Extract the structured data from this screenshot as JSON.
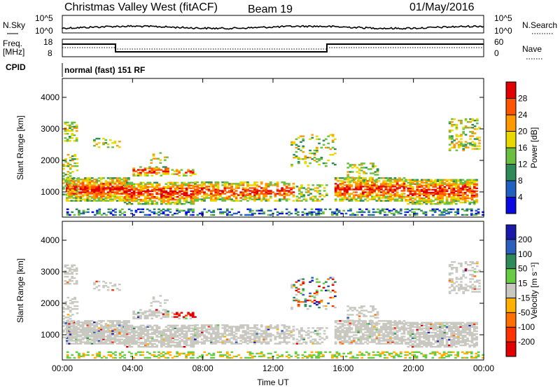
{
  "header": {
    "title": "Christmas Valley West (fitACF)",
    "beam": "Beam 19",
    "date": "01/May/2016"
  },
  "panels": {
    "nsky_label": "N.Sky",
    "nsky_ticks": [
      "10^5",
      "10^0"
    ],
    "nsearch_label": "N.Search",
    "nsearch_ticks": [
      "10^5",
      "10^0"
    ],
    "freq_label": "Freq.",
    "freq_unit": "[MHz]",
    "freq_ticks": [
      "18",
      "8"
    ],
    "nave_label": "Nave",
    "nave_ticks": [
      "60",
      "0"
    ],
    "cpid_label": "CPID",
    "cpid_text": "normal (fast) 151 RF"
  },
  "chart_data": [
    {
      "type": "heatmap",
      "name": "power-panel",
      "ylabel": "Slant Range [km]",
      "xlabel": "",
      "xlim": [
        "00:00",
        "24:00"
      ],
      "ylim": [
        200,
        4600
      ],
      "yticks": [
        "1000",
        "2000",
        "3000",
        "4000"
      ],
      "colorbar": {
        "label": "Power [dB]",
        "ticks": [
          "4",
          "8",
          "12",
          "16",
          "20",
          "24",
          "28"
        ],
        "colors": [
          "#0a0ae0",
          "#2060c0",
          "#2e8b57",
          "#6abf40",
          "#e8d800",
          "#ff9900",
          "#ff5500",
          "#e00000"
        ]
      }
    },
    {
      "type": "heatmap",
      "name": "velocity-panel",
      "ylabel": "Slant Range [km]",
      "xlabel": "Time UT",
      "xlim": [
        "00:00",
        "24:00"
      ],
      "ylim": [
        200,
        4600
      ],
      "xticks": [
        "00:00",
        "04:00",
        "08:00",
        "12:00",
        "16:00",
        "20:00",
        "00:00"
      ],
      "yticks": [
        "1000",
        "2000",
        "3000",
        "4000"
      ],
      "colorbar": {
        "label": "Velocity [m s⁻¹]",
        "ticks": [
          "200",
          "100",
          "50",
          "15",
          "-15",
          "-50",
          "-100",
          "-200"
        ],
        "colors": [
          "#1a1aaa",
          "#2a5fbf",
          "#2e8b57",
          "#66cc44",
          "#c8c8c0",
          "#ffb000",
          "#ff7000",
          "#ff3300",
          "#e00000"
        ]
      }
    }
  ],
  "colors": {
    "background": "#ffffff",
    "ground_scatter": "#c8c8c0",
    "axes": "#000000"
  }
}
